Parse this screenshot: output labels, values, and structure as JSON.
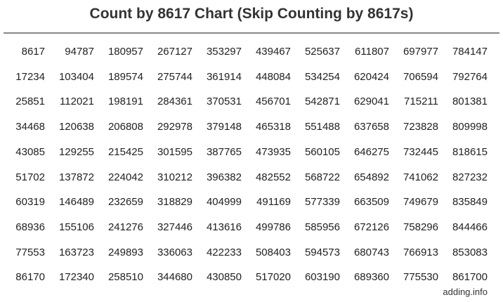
{
  "title": "Count by 8617 Chart (Skip Counting by 8617s)",
  "footer": "adding.info",
  "colors": {
    "text": "#333333",
    "rule": "#888888",
    "background": "#ffffff"
  },
  "chart_data": {
    "type": "table",
    "title": "Count by 8617 Chart (Skip Counting by 8617s)",
    "rows": [
      [
        "8617",
        "94787",
        "180957",
        "267127",
        "353297",
        "439467",
        "525637",
        "611807",
        "697977",
        "784147"
      ],
      [
        "17234",
        "103404",
        "189574",
        "275744",
        "361914",
        "448084",
        "534254",
        "620424",
        "706594",
        "792764"
      ],
      [
        "25851",
        "112021",
        "198191",
        "284361",
        "370531",
        "456701",
        "542871",
        "629041",
        "715211",
        "801381"
      ],
      [
        "34468",
        "120638",
        "206808",
        "292978",
        "379148",
        "465318",
        "551488",
        "637658",
        "723828",
        "809998"
      ],
      [
        "43085",
        "129255",
        "215425",
        "301595",
        "387765",
        "473935",
        "560105",
        "646275",
        "732445",
        "818615"
      ],
      [
        "51702",
        "137872",
        "224042",
        "310212",
        "396382",
        "482552",
        "568722",
        "654892",
        "741062",
        "827232"
      ],
      [
        "60319",
        "146489",
        "232659",
        "318829",
        "404999",
        "491169",
        "577339",
        "663509",
        "749679",
        "835849"
      ],
      [
        "68936",
        "155106",
        "241276",
        "327446",
        "413616",
        "499786",
        "585956",
        "672126",
        "758296",
        "844466"
      ],
      [
        "77553",
        "163723",
        "249893",
        "336063",
        "422233",
        "508403",
        "594573",
        "680743",
        "766913",
        "853083"
      ],
      [
        "86170",
        "172340",
        "258510",
        "344680",
        "430850",
        "517020",
        "603190",
        "689360",
        "775530",
        "861700"
      ]
    ]
  }
}
